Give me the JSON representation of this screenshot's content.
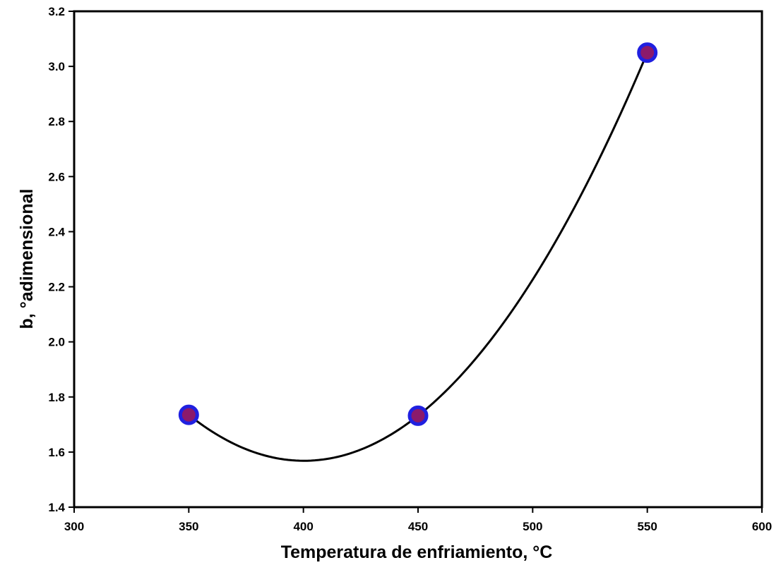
{
  "chart_data": {
    "type": "scatter",
    "title": "",
    "xlabel": "Temperatura de enfriamiento, °C",
    "ylabel": "b, °adimensional",
    "xlim": [
      300,
      600
    ],
    "ylim": [
      1.4,
      3.2
    ],
    "x_ticks": [
      "300",
      "350",
      "400",
      "450",
      "500",
      "550",
      "600"
    ],
    "y_ticks": [
      "1.4",
      "1.6",
      "1.8",
      "2.0",
      "2.2",
      "2.4",
      "2.6",
      "2.8",
      "3.0",
      "3.2"
    ],
    "grid": false,
    "legend": "none",
    "series": [
      {
        "points": [
          {
            "x": 350,
            "y": 1.735
          },
          {
            "x": 450,
            "y": 1.732
          },
          {
            "x": 550,
            "y": 3.05
          }
        ],
        "marker_fill": "#8B1A6B",
        "marker_edge": "#2020E0",
        "fit_curve": "quadratic",
        "fit_color": "#000000"
      }
    ]
  }
}
